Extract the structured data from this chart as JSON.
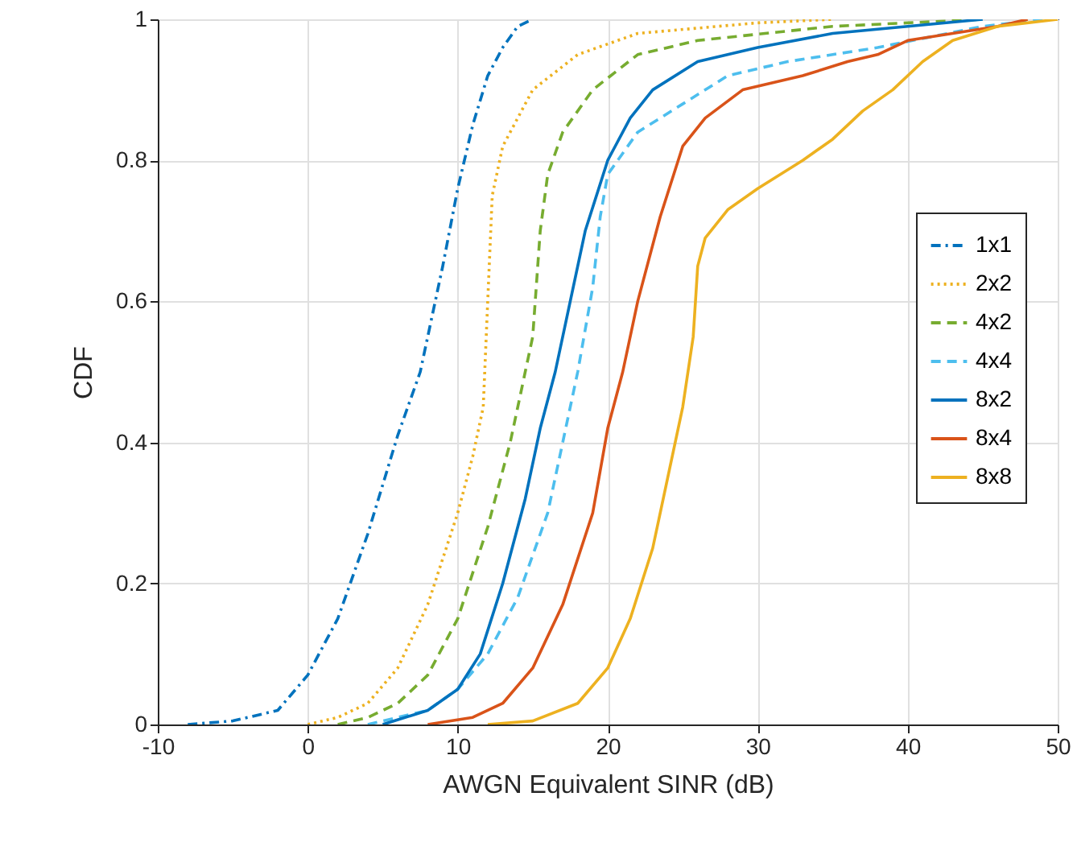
{
  "chart_data": {
    "type": "line",
    "xlabel": "AWGN Equivalent SINR (dB)",
    "ylabel": "CDF",
    "xlim": [
      -10,
      50
    ],
    "ylim": [
      0,
      1
    ],
    "xticks": [
      -10,
      0,
      10,
      20,
      30,
      40,
      50
    ],
    "yticks": [
      0,
      0.2,
      0.4,
      0.6,
      0.8,
      1
    ],
    "grid": true,
    "legend": "right",
    "marker": "none",
    "series": [
      {
        "name": "1x1",
        "color": "#0072bd",
        "line_style": "dashdot",
        "x": [
          -8,
          -5,
          -2,
          0,
          2,
          4,
          6,
          7.5,
          9,
          10,
          11,
          12,
          13,
          14,
          15
        ],
        "values": [
          0,
          0.005,
          0.02,
          0.07,
          0.15,
          0.27,
          0.41,
          0.5,
          0.65,
          0.76,
          0.85,
          0.92,
          0.96,
          0.99,
          1
        ]
      },
      {
        "name": "2x2",
        "color": "#edb120",
        "line_style": "dotted",
        "x": [
          0,
          2,
          4,
          6,
          8,
          10,
          11,
          11.7,
          12,
          12.3,
          13,
          15,
          18,
          22,
          30,
          35
        ],
        "values": [
          0,
          0.01,
          0.03,
          0.08,
          0.17,
          0.3,
          0.38,
          0.45,
          0.6,
          0.75,
          0.82,
          0.9,
          0.95,
          0.98,
          0.995,
          1
        ]
      },
      {
        "name": "4x2",
        "color": "#77ac30",
        "line_style": "dashed",
        "x": [
          2,
          4,
          6,
          8,
          10,
          12,
          13.5,
          15,
          15.5,
          16,
          17,
          19,
          22,
          26,
          35,
          45
        ],
        "values": [
          0,
          0.01,
          0.03,
          0.07,
          0.15,
          0.28,
          0.4,
          0.55,
          0.7,
          0.78,
          0.84,
          0.9,
          0.95,
          0.97,
          0.99,
          1
        ]
      },
      {
        "name": "4x4",
        "color": "#4dbeee",
        "line_style": "dashed",
        "x": [
          4,
          6,
          8,
          10,
          12,
          14,
          16,
          17,
          18,
          19,
          19.5,
          20,
          22,
          25,
          28,
          32,
          38,
          45,
          49
        ],
        "values": [
          0,
          0.01,
          0.02,
          0.05,
          0.1,
          0.18,
          0.3,
          0.4,
          0.5,
          0.62,
          0.72,
          0.78,
          0.84,
          0.88,
          0.92,
          0.94,
          0.96,
          0.99,
          1
        ]
      },
      {
        "name": "8x2",
        "color": "#0072bd",
        "line_style": "solid",
        "x": [
          5,
          8,
          10,
          11.5,
          13,
          14.5,
          15.5,
          16.5,
          17.5,
          18.5,
          20,
          21.5,
          23,
          26,
          30,
          35,
          40,
          45
        ],
        "values": [
          0,
          0.02,
          0.05,
          0.1,
          0.2,
          0.32,
          0.42,
          0.5,
          0.6,
          0.7,
          0.8,
          0.86,
          0.9,
          0.94,
          0.96,
          0.98,
          0.99,
          1
        ]
      },
      {
        "name": "8x4",
        "color": "#d95319",
        "line_style": "solid",
        "x": [
          8,
          11,
          13,
          15,
          17,
          19,
          20,
          21,
          22,
          23.5,
          25,
          26.5,
          29,
          33,
          36,
          38,
          40,
          43,
          46,
          48
        ],
        "values": [
          0,
          0.01,
          0.03,
          0.08,
          0.17,
          0.3,
          0.42,
          0.5,
          0.6,
          0.72,
          0.82,
          0.86,
          0.9,
          0.92,
          0.94,
          0.95,
          0.97,
          0.98,
          0.99,
          1
        ]
      },
      {
        "name": "8x8",
        "color": "#edb120",
        "line_style": "solid",
        "x": [
          12,
          15,
          18,
          20,
          21.5,
          23,
          24,
          25,
          25.7,
          26,
          26.5,
          28,
          30,
          33,
          35,
          37,
          39,
          41,
          43,
          46,
          50
        ],
        "values": [
          0,
          0.005,
          0.03,
          0.08,
          0.15,
          0.25,
          0.35,
          0.45,
          0.55,
          0.65,
          0.69,
          0.73,
          0.76,
          0.8,
          0.83,
          0.87,
          0.9,
          0.94,
          0.97,
          0.99,
          1
        ]
      }
    ]
  }
}
